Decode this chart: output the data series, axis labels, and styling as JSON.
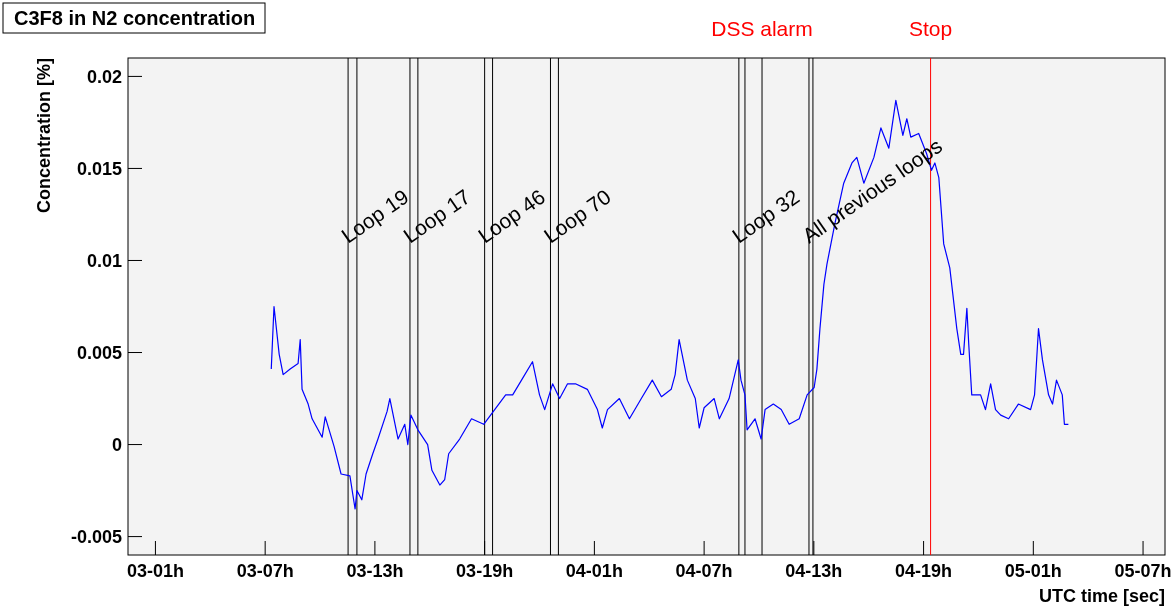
{
  "chart_data": {
    "type": "line",
    "title": "C3F8 in N2 concentration",
    "xlabel": "UTC time [sec]",
    "ylabel": "Concentration [%]",
    "xlim": [
      "--01-02T23:30",
      "--01-05T08:12"
    ],
    "ylim": [
      -0.006,
      0.021
    ],
    "xticks": [
      {
        "value": "--01-03T01:00",
        "label": "03-01h"
      },
      {
        "value": "--01-03T07:00",
        "label": "03-07h"
      },
      {
        "value": "--01-03T13:00",
        "label": "03-13h"
      },
      {
        "value": "--01-03T19:00",
        "label": "03-19h"
      },
      {
        "value": "--01-04T01:00",
        "label": "04-01h"
      },
      {
        "value": "--01-04T07:00",
        "label": "04-07h"
      },
      {
        "value": "--01-04T13:00",
        "label": "04-13h"
      },
      {
        "value": "--01-04T19:00",
        "label": "04-19h"
      },
      {
        "value": "--01-05T01:00",
        "label": "05-01h"
      },
      {
        "value": "--01-05T07:00",
        "label": "05-07h"
      }
    ],
    "yticks": [
      -0.005,
      0,
      0.005,
      0.01,
      0.015,
      0.02
    ],
    "marker": "none",
    "line_style": "solid",
    "series": [
      {
        "color": "#0000ff",
        "x": [
          "--01-03T07:20",
          "--01-03T07:29",
          "--01-03T07:46",
          "--01-03T07:59",
          "--01-03T08:22",
          "--01-03T08:48",
          "--01-03T08:55",
          "--01-03T09:01",
          "--01-03T09:21",
          "--01-03T09:34",
          "--01-03T10:07",
          "--01-03T10:17",
          "--01-03T10:46",
          "--01-03T11:09",
          "--01-03T11:38",
          "--01-03T11:55",
          "--01-03T12:01",
          "--01-03T12:17",
          "--01-03T12:31",
          "--01-03T12:53",
          "--01-03T13:10",
          "--01-03T13:40",
          "--01-03T13:49",
          "--01-03T14:16",
          "--01-03T14:38",
          "--01-03T14:48",
          "--01-03T14:58",
          "--01-03T15:21",
          "--01-03T15:53",
          "--01-03T16:07",
          "--01-03T16:33",
          "--01-03T16:49",
          "--01-03T17:02",
          "--01-03T17:38",
          "--01-03T18:17",
          "--01-03T18:57",
          "--01-03T19:33",
          "--01-03T20:09",
          "--01-03T20:32",
          "--01-03T21:01",
          "--01-03T21:37",
          "--01-03T22:00",
          "--01-03T22:17",
          "--01-03T22:43",
          "--01-03T23:06",
          "--01-03T23:32",
          "--01-03T23:58",
          "--01-04T00:37",
          "--01-04T01:10",
          "--01-04T01:26",
          "--01-04T01:43",
          "--01-04T02:22",
          "--01-04T02:55",
          "--01-04T03:34",
          "--01-04T04:10",
          "--01-04T04:40",
          "--01-04T05:12",
          "--01-04T05:25",
          "--01-04T05:38",
          "--01-04T06:05",
          "--01-04T06:31",
          "--01-04T06:44",
          "--01-04T07:00",
          "--01-04T07:33",
          "--01-04T07:50",
          "--01-04T08:22",
          "--01-04T08:52",
          "--01-04T09:01",
          "--01-04T09:14",
          "--01-04T09:21",
          "--01-04T09:47",
          "--01-04T10:07",
          "--01-04T10:20",
          "--01-04T10:47",
          "--01-04T11:13",
          "--01-04T11:39",
          "--01-04T12:12",
          "--01-04T12:38",
          "--01-04T13:01",
          "--01-04T13:10",
          "--01-04T13:20",
          "--01-04T13:33",
          "--01-04T13:43",
          "--01-04T14:09",
          "--01-04T14:38",
          "--01-04T15:05",
          "--01-04T15:21",
          "--01-04T15:44",
          "--01-04T16:17",
          "--01-04T16:40",
          "--01-04T17:06",
          "--01-04T17:29",
          "--01-04T17:52",
          "--01-04T18:05",
          "--01-04T18:18",
          "--01-04T18:44",
          "--01-04T19:10",
          "--01-04T19:26",
          "--01-04T19:37",
          "--01-04T19:50",
          "--01-04T20:06",
          "--01-04T20:26",
          "--01-04T20:49",
          "--01-04T21:02",
          "--01-04T21:11",
          "--01-04T21:22",
          "--01-04T21:28",
          "--01-04T21:38",
          "--01-04T22:07",
          "--01-04T22:23",
          "--01-04T22:40",
          "--01-04T22:56",
          "--01-04T23:13",
          "--01-04T23:39",
          "--01-05T00:11",
          "--01-05T00:51",
          "--01-05T01:04",
          "--01-05T01:17",
          "--01-05T01:30",
          "--01-05T01:50",
          "--01-05T02:03",
          "--01-05T02:16",
          "--01-05T02:35",
          "--01-05T02:42",
          "--01-05T02:55"
        ],
        "values": [
          0.0041,
          0.0075,
          0.0049,
          0.0038,
          0.0041,
          0.0044,
          0.0057,
          0.003,
          0.0022,
          0.0014,
          0.0004,
          0.0015,
          -0.0001,
          -0.0016,
          -0.0017,
          -0.0035,
          -0.0025,
          -0.003,
          -0.0016,
          -0.0005,
          0.0003,
          0.0018,
          0.0025,
          0.0003,
          0.0011,
          0,
          0.0016,
          0.0008,
          0,
          -0.0014,
          -0.0022,
          -0.0019,
          -0.0005,
          0.0003,
          0.0014,
          0.0011,
          0.0019,
          0.0027,
          0.0027,
          0.0035,
          0.0045,
          0.0027,
          0.0019,
          0.0033,
          0.0025,
          0.0033,
          0.0033,
          0.003,
          0.0019,
          0.0009,
          0.0019,
          0.0025,
          0.0014,
          0.0025,
          0.0035,
          0.0026,
          0.003,
          0.0038,
          0.0057,
          0.0035,
          0.0025,
          0.0009,
          0.002,
          0.0025,
          0.0014,
          0.0025,
          0.0046,
          0.0035,
          0.0027,
          0.0008,
          0.0014,
          0.0003,
          0.0019,
          0.0022,
          0.0019,
          0.0011,
          0.0014,
          0.0027,
          0.0031,
          0.0041,
          0.0063,
          0.0087,
          0.0098,
          0.012,
          0.0142,
          0.0153,
          0.0156,
          0.0142,
          0.0156,
          0.0172,
          0.0161,
          0.0187,
          0.0168,
          0.0177,
          0.0167,
          0.0169,
          0.0158,
          0.0149,
          0.0153,
          0.0145,
          0.0109,
          0.0096,
          0.0063,
          0.0049,
          0.0049,
          0.0074,
          0.0055,
          0.0027,
          0.0027,
          0.0019,
          0.0033,
          0.0019,
          0.0016,
          0.0014,
          0.0022,
          0.0019,
          0.0027,
          0.0063,
          0.0046,
          0.0027,
          0.0022,
          0.0035,
          0.0027,
          0.0011,
          0.0011
        ]
      }
    ],
    "ref_lines": [
      {
        "axis": "x",
        "value": "--01-03T11:32",
        "color": "#000000"
      },
      {
        "axis": "x",
        "value": "--01-03T12:01",
        "color": "#000000"
      },
      {
        "axis": "x",
        "value": "--01-03T14:55",
        "color": "#000000"
      },
      {
        "axis": "x",
        "value": "--01-03T15:21",
        "color": "#000000"
      },
      {
        "axis": "x",
        "value": "--01-03T19:00",
        "color": "#000000"
      },
      {
        "axis": "x",
        "value": "--01-03T19:26",
        "color": "#000000"
      },
      {
        "axis": "x",
        "value": "--01-03T22:36",
        "color": "#000000"
      },
      {
        "axis": "x",
        "value": "--01-03T23:02",
        "color": "#000000"
      },
      {
        "axis": "x",
        "value": "--01-04T08:54",
        "color": "#000000"
      },
      {
        "axis": "x",
        "value": "--01-04T09:14",
        "color": "#000000"
      },
      {
        "axis": "x",
        "value": "--01-04T12:44",
        "color": "#000000"
      },
      {
        "axis": "x",
        "value": "--01-04T12:57",
        "color": "#000000"
      },
      {
        "axis": "x",
        "value": "--01-04T10:10",
        "label": "DSS alarm",
        "color": "#000000"
      },
      {
        "axis": "x",
        "value": "--01-04T19:23",
        "label": "Stop",
        "color": "#ff0000"
      }
    ],
    "annotations": [
      {
        "text": "Loop 19",
        "x": "--01-03T11:32",
        "y": 0.0109
      },
      {
        "text": "Loop 17",
        "x": "--01-03T14:55",
        "y": 0.0109
      },
      {
        "text": "Loop 46",
        "x": "--01-03T19:00",
        "y": 0.0109
      },
      {
        "text": "Loop 70",
        "x": "--01-03T22:36",
        "y": 0.0109
      },
      {
        "text": "Loop 32",
        "x": "--01-04T08:54",
        "y": 0.0109
      },
      {
        "text": "All previous loops",
        "x": "--01-04T12:44",
        "y": 0.0109
      }
    ]
  }
}
